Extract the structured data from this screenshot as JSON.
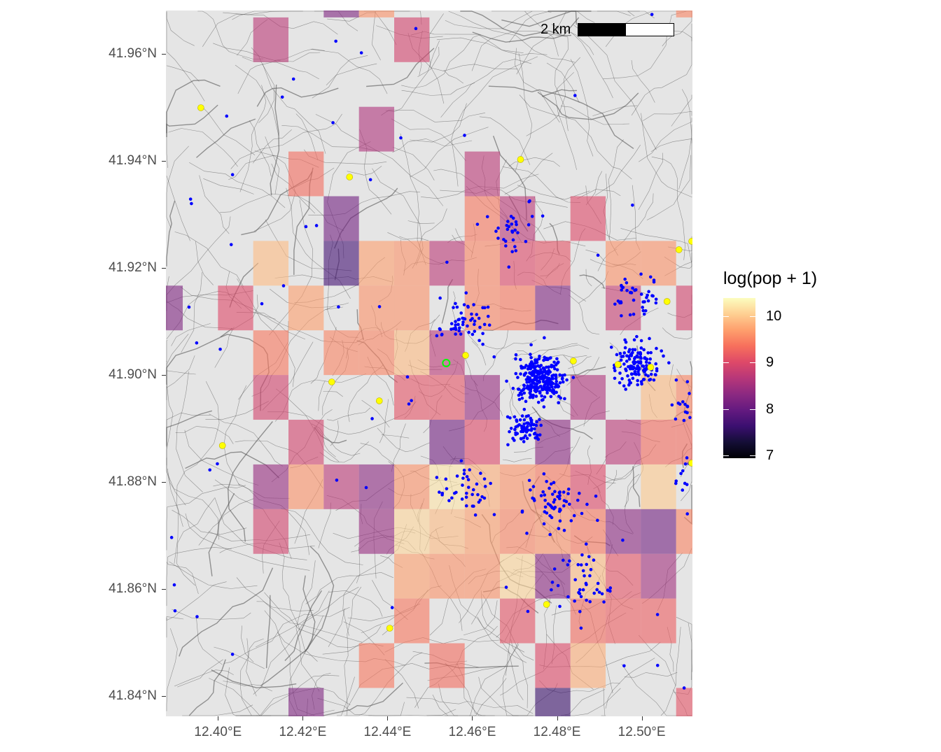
{
  "chart_data": {
    "type": "heatmap",
    "subtype": "map-grid-overlay",
    "title": "",
    "xlabel": "",
    "ylabel": "",
    "xlim": [
      12.38772,
      12.51196
    ],
    "ylim": [
      41.83621,
      41.9681
    ],
    "x_ticks": [
      {
        "value": 12.4,
        "label": "12.40°E"
      },
      {
        "value": 12.42,
        "label": "12.42°E"
      },
      {
        "value": 12.44,
        "label": "12.44°E"
      },
      {
        "value": 12.46,
        "label": "12.46°E"
      },
      {
        "value": 12.48,
        "label": "12.48°E"
      },
      {
        "value": 12.5,
        "label": "12.50°E"
      }
    ],
    "y_ticks": [
      {
        "value": 41.96,
        "label": "41.96°N"
      },
      {
        "value": 41.94,
        "label": "41.94°N"
      },
      {
        "value": 41.92,
        "label": "41.92°N"
      },
      {
        "value": 41.9,
        "label": "41.90°N"
      },
      {
        "value": 41.88,
        "label": "41.88°N"
      },
      {
        "value": 41.86,
        "label": "41.86°N"
      },
      {
        "value": 41.84,
        "label": "41.84°N"
      }
    ],
    "legend": {
      "title": "log(pop + 1)",
      "placement": "right",
      "palette": "magma",
      "limits": [
        6.94,
        10.39
      ],
      "breaks": [
        {
          "value": 10,
          "label": "10"
        },
        {
          "value": 9,
          "label": "9"
        },
        {
          "value": 8,
          "label": "8"
        },
        {
          "value": 7,
          "label": "7"
        }
      ]
    },
    "grid": {
      "lon_origin": 12.38337,
      "lat_origin": 41.97516,
      "cell_lon": 0.008316,
      "cell_lat": 0.008353,
      "cells_col_row_value": [
        [
          5,
          0,
          8.2
        ],
        [
          6,
          0,
          9.6
        ],
        [
          15,
          0,
          9.5
        ],
        [
          3,
          1,
          8.7
        ],
        [
          7,
          1,
          8.9
        ],
        [
          6,
          3,
          8.6
        ],
        [
          4,
          4,
          9.3
        ],
        [
          9,
          4,
          8.7
        ],
        [
          5,
          5,
          8.1
        ],
        [
          9,
          5,
          9.4
        ],
        [
          10,
          5,
          8.7
        ],
        [
          12,
          5,
          9.0
        ],
        [
          16,
          5,
          10.0
        ],
        [
          3,
          6,
          9.9
        ],
        [
          5,
          6,
          7.7
        ],
        [
          6,
          6,
          9.7
        ],
        [
          7,
          6,
          9.6
        ],
        [
          8,
          6,
          8.7
        ],
        [
          9,
          6,
          9.5
        ],
        [
          10,
          6,
          9.0
        ],
        [
          11,
          6,
          9.1
        ],
        [
          13,
          6,
          9.6
        ],
        [
          14,
          6,
          9.6
        ],
        [
          16,
          6,
          9.5
        ],
        [
          0,
          7,
          8.2
        ],
        [
          2,
          7,
          9.0
        ],
        [
          4,
          7,
          9.7
        ],
        [
          6,
          7,
          9.6
        ],
        [
          7,
          7,
          9.6
        ],
        [
          9,
          7,
          9.5
        ],
        [
          10,
          7,
          9.4
        ],
        [
          11,
          7,
          8.2
        ],
        [
          13,
          7,
          8.8
        ],
        [
          15,
          7,
          8.9
        ],
        [
          16,
          7,
          10.0
        ],
        [
          3,
          8,
          9.4
        ],
        [
          5,
          8,
          9.5
        ],
        [
          6,
          8,
          9.5
        ],
        [
          7,
          8,
          9.9
        ],
        [
          8,
          8,
          8.7
        ],
        [
          16,
          8,
          8.2
        ],
        [
          3,
          9,
          8.9
        ],
        [
          7,
          9,
          9.1
        ],
        [
          8,
          9,
          9.1
        ],
        [
          9,
          9,
          8.4
        ],
        [
          12,
          9,
          8.6
        ],
        [
          14,
          9,
          9.9
        ],
        [
          15,
          9,
          9.5
        ],
        [
          16,
          9,
          8.3
        ],
        [
          4,
          10,
          8.9
        ],
        [
          8,
          10,
          8.1
        ],
        [
          9,
          10,
          9.0
        ],
        [
          11,
          10,
          8.3
        ],
        [
          13,
          10,
          8.7
        ],
        [
          14,
          10,
          9.3
        ],
        [
          15,
          10,
          9.3
        ],
        [
          16,
          10,
          9.4
        ],
        [
          3,
          11,
          8.4
        ],
        [
          4,
          11,
          9.6
        ],
        [
          5,
          11,
          8.7
        ],
        [
          6,
          11,
          8.3
        ],
        [
          7,
          11,
          9.6
        ],
        [
          8,
          11,
          10.2
        ],
        [
          9,
          11,
          9.8
        ],
        [
          10,
          11,
          9.6
        ],
        [
          11,
          11,
          9.4
        ],
        [
          12,
          11,
          9.0
        ],
        [
          14,
          11,
          10.0
        ],
        [
          16,
          11,
          10.1
        ],
        [
          3,
          12,
          8.9
        ],
        [
          6,
          12,
          8.4
        ],
        [
          7,
          12,
          10.1
        ],
        [
          8,
          12,
          9.9
        ],
        [
          9,
          12,
          9.7
        ],
        [
          10,
          12,
          9.5
        ],
        [
          11,
          12,
          9.6
        ],
        [
          12,
          12,
          9.4
        ],
        [
          13,
          12,
          8.3
        ],
        [
          14,
          12,
          8.1
        ],
        [
          15,
          12,
          9.5
        ],
        [
          16,
          12,
          9.6
        ],
        [
          7,
          13,
          9.7
        ],
        [
          8,
          13,
          9.6
        ],
        [
          9,
          13,
          9.6
        ],
        [
          10,
          13,
          10.1
        ],
        [
          11,
          13,
          8.3
        ],
        [
          12,
          13,
          9.9
        ],
        [
          13,
          13,
          9.1
        ],
        [
          14,
          13,
          8.5
        ],
        [
          7,
          14,
          9.4
        ],
        [
          10,
          14,
          9.1
        ],
        [
          12,
          14,
          9.3
        ],
        [
          13,
          14,
          9.2
        ],
        [
          14,
          14,
          9.2
        ],
        [
          6,
          15,
          9.4
        ],
        [
          8,
          15,
          9.3
        ],
        [
          11,
          15,
          9.0
        ],
        [
          12,
          15,
          9.8
        ],
        [
          4,
          16,
          8.2
        ],
        [
          11,
          16,
          7.6
        ],
        [
          15,
          16,
          9.1
        ]
      ]
    },
    "point_clusters": [
      {
        "lon": 12.47596,
        "lat": 41.89948,
        "n": 260,
        "spread": 0.006
      },
      {
        "lon": 12.49877,
        "lat": 41.90209,
        "n": 130,
        "spread": 0.006
      },
      {
        "lon": 12.47246,
        "lat": 41.89033,
        "n": 70,
        "spread": 0.004
      },
      {
        "lon": 12.45842,
        "lat": 41.90993,
        "n": 55,
        "spread": 0.006
      },
      {
        "lon": 12.51281,
        "lat": 41.89425,
        "n": 60,
        "spread": 0.006
      },
      {
        "lon": 12.47947,
        "lat": 41.87595,
        "n": 60,
        "spread": 0.007
      },
      {
        "lon": 12.45842,
        "lat": 41.87856,
        "n": 40,
        "spread": 0.007
      },
      {
        "lon": 12.48649,
        "lat": 41.86157,
        "n": 40,
        "spread": 0.007
      },
      {
        "lon": 12.46895,
        "lat": 41.92693,
        "n": 30,
        "spread": 0.006
      },
      {
        "lon": 12.49877,
        "lat": 41.91516,
        "n": 40,
        "spread": 0.006
      },
      {
        "lon": 12.51281,
        "lat": 41.88118,
        "n": 40,
        "spread": 0.005
      }
    ],
    "stops": [
      [
        12.39596,
        41.94993
      ],
      [
        12.43105,
        41.93699
      ],
      [
        12.4714,
        41.94026
      ],
      [
        12.50877,
        41.9234
      ],
      [
        12.51579,
        41.92497
      ],
      [
        12.50596,
        41.91373
      ],
      [
        12.45842,
        41.90366
      ],
      [
        12.48386,
        41.90261
      ],
      [
        12.49439,
        41.90196
      ],
      [
        12.50211,
        41.90144
      ],
      [
        12.42684,
        41.89869
      ],
      [
        12.43807,
        41.89516
      ],
      [
        12.40105,
        41.8868
      ],
      [
        12.51175,
        41.88353
      ],
      [
        12.47754,
        41.85712
      ],
      [
        12.44053,
        41.85268
      ]
    ],
    "highlight_marker": [
      12.45386,
      41.90222
    ],
    "scale_bar": {
      "label": "2 km"
    }
  },
  "colors": {
    "panel": "#e5e5e5",
    "points": "#0000ff",
    "stops": "#ffff00",
    "highlight": "#00ff00",
    "roads": "#4a4a4a"
  }
}
